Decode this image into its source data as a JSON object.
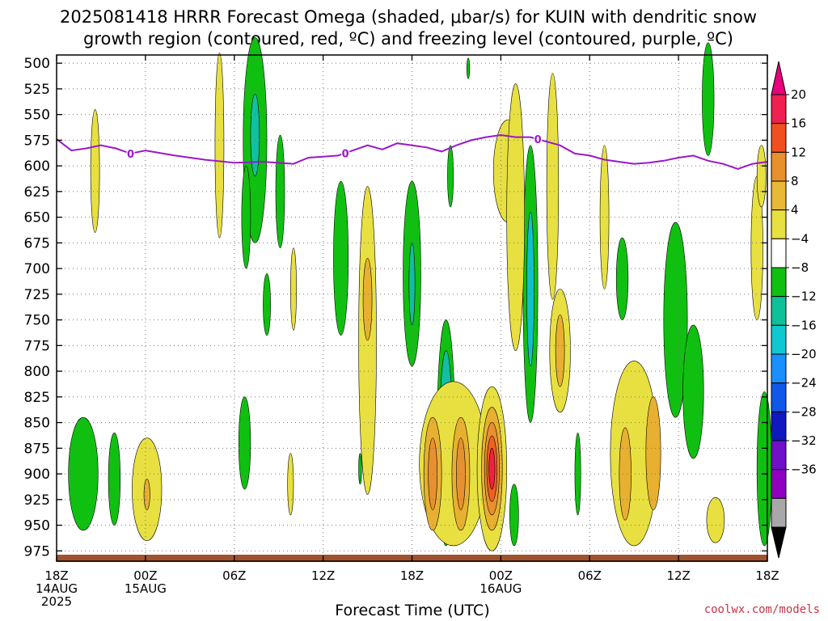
{
  "title_line1": "2025081418 HRRR Forecast Omega (shaded, μbar/s) for KUIN with dendritic snow",
  "title_line2": "growth region (contoured, red, ºC) and freezing level (contoured, purple, ºC)",
  "xlabel": "Forecast Time (UTC)",
  "credit": "coolwx.com/models",
  "colors": {
    "freezing_line": "#9a18c8",
    "ground": "#a0522d",
    "neg4": "#10c010",
    "neg8": "#10c0a0",
    "neg12": "#10c0c8",
    "neg16": "#1a90ff",
    "neg20": "#1060e8",
    "neg24": "#1020c8",
    "neg28": "#7010c8",
    "neg32": "#9000c0",
    "neg36": "#a0a0a0",
    "pos4": "#e8e040",
    "pos8": "#e8b030",
    "pos12": "#e89030",
    "pos16": "#f06020",
    "pos20": "#f02040",
    "pos_max": "#e8007a"
  },
  "chart_data": {
    "type": "heatmap",
    "x_ticks": [
      {
        "hour": 0,
        "lines": [
          "18Z",
          "14AUG",
          "2025"
        ]
      },
      {
        "hour": 6,
        "lines": [
          "00Z",
          "15AUG"
        ]
      },
      {
        "hour": 12,
        "lines": [
          "06Z"
        ]
      },
      {
        "hour": 18,
        "lines": [
          "12Z"
        ]
      },
      {
        "hour": 24,
        "lines": [
          "18Z"
        ]
      },
      {
        "hour": 30,
        "lines": [
          "00Z",
          "16AUG"
        ]
      },
      {
        "hour": 36,
        "lines": [
          "06Z"
        ]
      },
      {
        "hour": 42,
        "lines": [
          "12Z"
        ]
      },
      {
        "hour": 48,
        "lines": [
          "18Z"
        ]
      }
    ],
    "y_ticks": [
      500,
      525,
      550,
      575,
      600,
      625,
      650,
      675,
      700,
      725,
      750,
      775,
      800,
      825,
      850,
      875,
      900,
      925,
      950,
      975
    ],
    "y_axis": "pressure (hPa), inverted",
    "xlim_hours": [
      0,
      48
    ],
    "ylim": [
      492,
      985
    ],
    "colorbar": {
      "labels": [
        "20",
        "16",
        "12",
        "8",
        "4",
        "−4",
        "−8",
        "−12",
        "−16",
        "−20",
        "−24",
        "−28",
        "−32",
        "−36"
      ],
      "colors": [
        "#f02050",
        "#f05020",
        "#e8902c",
        "#e8b838",
        "#e8e040",
        "#ffffff",
        "#10c010",
        "#10c098",
        "#10c8d0",
        "#1a90ff",
        "#1058e8",
        "#1018c0",
        "#7010c8",
        "#9000c0",
        "#a8a8a8"
      ],
      "top_arrow_color": "#e8007a",
      "bottom_arrow_color": "#000000"
    },
    "freezing_level": {
      "label": "0",
      "hours": [
        0,
        1,
        2,
        3,
        4,
        5,
        6,
        8,
        10,
        12,
        14,
        16,
        17,
        18,
        19,
        20,
        21,
        22,
        23,
        24,
        25,
        26,
        27,
        28,
        29,
        30,
        31,
        32,
        33,
        34,
        35,
        36,
        37,
        38,
        39,
        40,
        41,
        42,
        43,
        44,
        45,
        46,
        47,
        48
      ],
      "pressure": [
        574,
        585,
        583,
        580,
        583,
        588,
        585,
        590,
        594,
        597,
        596,
        598,
        592,
        591,
        590,
        585,
        580,
        584,
        578,
        580,
        582,
        586,
        580,
        575,
        572,
        570,
        572,
        572,
        576,
        580,
        588,
        590,
        594,
        596,
        598,
        597,
        595,
        592,
        590,
        595,
        598,
        603,
        598,
        596
      ],
      "label_hours": [
        5,
        19.5,
        32.5
      ]
    },
    "omega_regions": [
      {
        "level": -4,
        "t": 1.8,
        "p": 900,
        "rt": 1.0,
        "rp": 55
      },
      {
        "level": -4,
        "t": 3.9,
        "p": 905,
        "rt": 0.4,
        "rp": 45
      },
      {
        "level": -4,
        "t": 12.7,
        "p": 870,
        "rt": 0.4,
        "rp": 45
      },
      {
        "level": -4,
        "t": 13.4,
        "p": 575,
        "rt": 0.8,
        "rp": 100
      },
      {
        "level": -8,
        "t": 13.4,
        "p": 570,
        "rt": 0.3,
        "rp": 40
      },
      {
        "level": -4,
        "t": 12.8,
        "p": 650,
        "rt": 0.3,
        "rp": 50
      },
      {
        "level": -4,
        "t": 15.1,
        "p": 625,
        "rt": 0.3,
        "rp": 55
      },
      {
        "level": -4,
        "t": 14.2,
        "p": 735,
        "rt": 0.25,
        "rp": 30
      },
      {
        "level": -4,
        "t": 19.2,
        "p": 690,
        "rt": 0.5,
        "rp": 75
      },
      {
        "level": -4,
        "t": 20.5,
        "p": 895,
        "rt": 0.1,
        "rp": 15
      },
      {
        "level": -4,
        "t": 24.0,
        "p": 705,
        "rt": 0.6,
        "rp": 90
      },
      {
        "level": -8,
        "t": 24.0,
        "p": 715,
        "rt": 0.2,
        "rp": 40
      },
      {
        "level": -4,
        "t": 26.6,
        "p": 610,
        "rt": 0.2,
        "rp": 30
      },
      {
        "level": -4,
        "t": 26.3,
        "p": 860,
        "rt": 0.6,
        "rp": 110
      },
      {
        "level": -8,
        "t": 26.3,
        "p": 870,
        "rt": 0.45,
        "rp": 90
      },
      {
        "level": -16,
        "t": 26.3,
        "p": 880,
        "rt": 0.3,
        "rp": 65
      },
      {
        "level": -24,
        "t": 26.3,
        "p": 890,
        "rt": 0.2,
        "rp": 45
      },
      {
        "level": -32,
        "t": 26.3,
        "p": 900,
        "rt": 0.1,
        "rp": 30
      },
      {
        "level": -4,
        "t": 30.9,
        "p": 940,
        "rt": 0.3,
        "rp": 30
      },
      {
        "level": -4,
        "t": 32.0,
        "p": 715,
        "rt": 0.5,
        "rp": 135
      },
      {
        "level": -12,
        "t": 32.0,
        "p": 720,
        "rt": 0.25,
        "rp": 75
      },
      {
        "level": -4,
        "t": 35.2,
        "p": 900,
        "rt": 0.2,
        "rp": 40
      },
      {
        "level": -4,
        "t": 38.2,
        "p": 710,
        "rt": 0.4,
        "rp": 40
      },
      {
        "level": -4,
        "t": 41.8,
        "p": 750,
        "rt": 0.8,
        "rp": 95
      },
      {
        "level": -4,
        "t": 43.0,
        "p": 820,
        "rt": 0.7,
        "rp": 65
      },
      {
        "level": -4,
        "t": 44.0,
        "p": 535,
        "rt": 0.4,
        "rp": 55
      },
      {
        "level": -4,
        "t": 47.8,
        "p": 895,
        "rt": 0.5,
        "rp": 75
      },
      {
        "level": -4,
        "t": 27.8,
        "p": 505,
        "rt": 0.1,
        "rp": 10
      },
      {
        "level": 4,
        "t": 2.6,
        "p": 605,
        "rt": 0.3,
        "rp": 60
      },
      {
        "level": 4,
        "t": 6.1,
        "p": 915,
        "rt": 1.0,
        "rp": 50
      },
      {
        "level": 8,
        "t": 6.1,
        "p": 920,
        "rt": 0.2,
        "rp": 15
      },
      {
        "level": 4,
        "t": 11.0,
        "p": 580,
        "rt": 0.3,
        "rp": 90
      },
      {
        "level": 4,
        "t": 16.0,
        "p": 720,
        "rt": 0.2,
        "rp": 40
      },
      {
        "level": 4,
        "t": 15.8,
        "p": 910,
        "rt": 0.2,
        "rp": 30
      },
      {
        "level": 4,
        "t": 21.0,
        "p": 770,
        "rt": 0.6,
        "rp": 150
      },
      {
        "level": 8,
        "t": 21.0,
        "p": 730,
        "rt": 0.3,
        "rp": 40
      },
      {
        "level": 4,
        "t": 26.8,
        "p": 890,
        "rt": 2.3,
        "rp": 80
      },
      {
        "level": 8,
        "t": 25.4,
        "p": 900,
        "rt": 0.6,
        "rp": 55
      },
      {
        "level": 12,
        "t": 25.4,
        "p": 900,
        "rt": 0.3,
        "rp": 35
      },
      {
        "level": 8,
        "t": 27.3,
        "p": 900,
        "rt": 0.6,
        "rp": 55
      },
      {
        "level": 12,
        "t": 27.3,
        "p": 900,
        "rt": 0.3,
        "rp": 35
      },
      {
        "level": 4,
        "t": 29.4,
        "p": 895,
        "rt": 1.0,
        "rp": 80
      },
      {
        "level": 8,
        "t": 29.4,
        "p": 895,
        "rt": 0.7,
        "rp": 60
      },
      {
        "level": 12,
        "t": 29.4,
        "p": 895,
        "rt": 0.5,
        "rp": 45
      },
      {
        "level": 16,
        "t": 29.4,
        "p": 895,
        "rt": 0.35,
        "rp": 32
      },
      {
        "level": 20,
        "t": 29.4,
        "p": 895,
        "rt": 0.2,
        "rp": 20
      },
      {
        "level": 4,
        "t": 30.5,
        "p": 605,
        "rt": 1.0,
        "rp": 50
      },
      {
        "level": 4,
        "t": 31.0,
        "p": 650,
        "rt": 0.6,
        "rp": 130
      },
      {
        "level": 4,
        "t": 33.5,
        "p": 620,
        "rt": 0.4,
        "rp": 110
      },
      {
        "level": 4,
        "t": 34.0,
        "p": 780,
        "rt": 0.7,
        "rp": 60
      },
      {
        "level": 8,
        "t": 34.0,
        "p": 780,
        "rt": 0.3,
        "rp": 35
      },
      {
        "level": 4,
        "t": 37.0,
        "p": 650,
        "rt": 0.3,
        "rp": 70
      },
      {
        "level": 4,
        "t": 39.0,
        "p": 880,
        "rt": 1.6,
        "rp": 90
      },
      {
        "level": 8,
        "t": 38.4,
        "p": 900,
        "rt": 0.4,
        "rp": 45
      },
      {
        "level": 8,
        "t": 40.3,
        "p": 880,
        "rt": 0.5,
        "rp": 55
      },
      {
        "level": 4,
        "t": 44.5,
        "p": 945,
        "rt": 0.6,
        "rp": 22
      },
      {
        "level": 4,
        "t": 47.3,
        "p": 680,
        "rt": 0.4,
        "rp": 70
      },
      {
        "level": 4,
        "t": 47.6,
        "p": 610,
        "rt": 0.3,
        "rp": 30
      }
    ]
  }
}
